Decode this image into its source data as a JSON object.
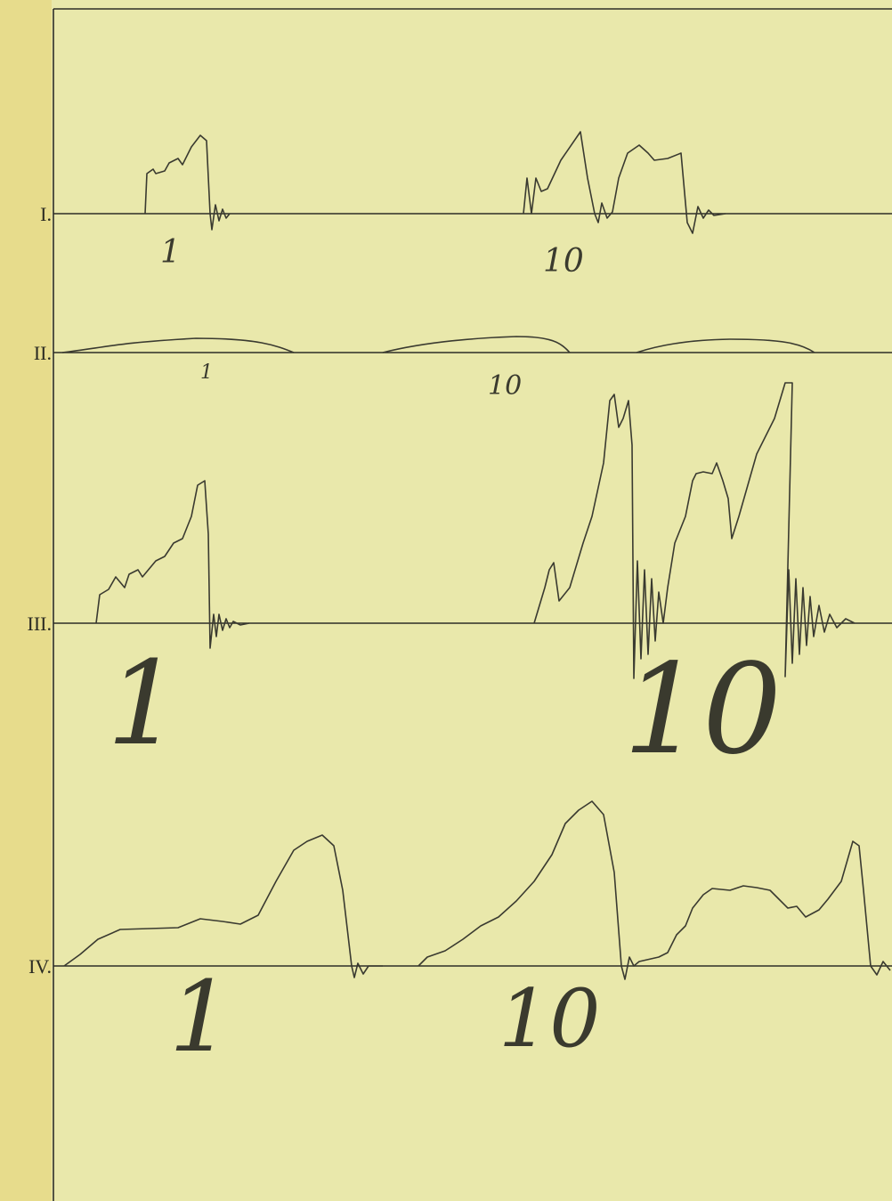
{
  "traces": [
    {
      "label": "I.",
      "annotations": [
        "1",
        "10"
      ]
    },
    {
      "label": "II.",
      "annotations": [
        "1",
        "10"
      ]
    },
    {
      "label": "III.",
      "annotations": [
        "1",
        "10"
      ]
    },
    {
      "label": "IV.",
      "annotations": [
        "1",
        "10"
      ]
    }
  ]
}
